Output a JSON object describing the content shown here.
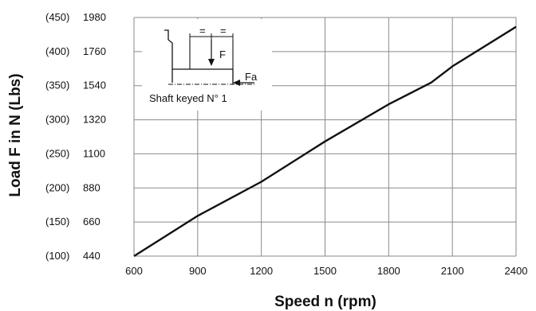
{
  "chart_data": {
    "type": "line",
    "title": "",
    "xlabel": "Speed n (rpm)",
    "ylabel": "Load F in N (Lbs)",
    "xlim": [
      600,
      2400
    ],
    "ylim": [
      440,
      1980
    ],
    "grid": true,
    "x_ticks": [
      600,
      900,
      1200,
      1500,
      1800,
      2100,
      2400
    ],
    "y_ticks": [
      {
        "value": 440,
        "label": "440",
        "alt_label": "(100)"
      },
      {
        "value": 660,
        "label": "660",
        "alt_label": "(150)"
      },
      {
        "value": 880,
        "label": "880",
        "alt_label": "(200)"
      },
      {
        "value": 1100,
        "label": "1100",
        "alt_label": "(250)"
      },
      {
        "value": 1320,
        "label": "1320",
        "alt_label": "(300)"
      },
      {
        "value": 1540,
        "label": "1540",
        "alt_label": "(350)"
      },
      {
        "value": 1760,
        "label": "1760",
        "alt_label": "(400)"
      },
      {
        "value": 1980,
        "label": "1980",
        "alt_label": "(450)"
      }
    ],
    "series": [
      {
        "x": [
          600,
          900,
          1200,
          1500,
          1800,
          2000,
          2100,
          2400
        ],
        "y": [
          440,
          700,
          920,
          1180,
          1420,
          1560,
          1665,
          1920
        ]
      }
    ],
    "inset": {
      "caption": "Shaft keyed N° 1",
      "force_label": "F",
      "axial_force_label": "Fa",
      "equal_marks": [
        "=",
        "="
      ]
    }
  }
}
